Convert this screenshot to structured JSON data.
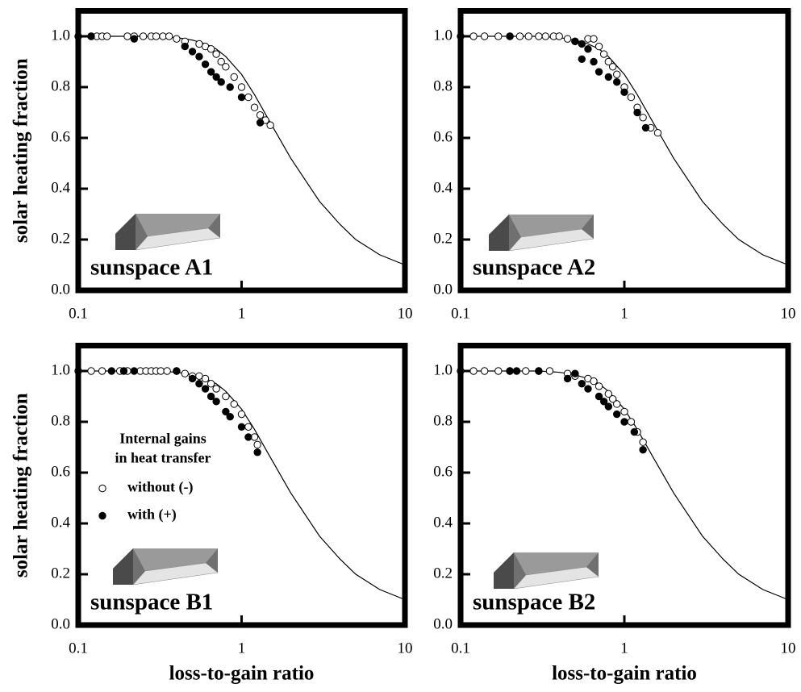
{
  "chart_data": [
    {
      "type": "scatter",
      "title": "sunspace A1",
      "ylabel": "solar heating fraction",
      "log_x": true,
      "xlim": [
        0.1,
        10
      ],
      "ylim": [
        0,
        1.1
      ],
      "xticks": [
        0.1,
        1,
        10
      ],
      "yticks": [
        {
          "value": 0,
          "label": "0.0"
        },
        0.2,
        0.4,
        0.6,
        0.8,
        {
          "value": 1,
          "label": "1.0"
        }
      ],
      "series": [
        {
          "marker": "open",
          "color": "#000000",
          "x": [
            0.12,
            0.13,
            0.14,
            0.15,
            0.2,
            0.22,
            0.25,
            0.28,
            0.3,
            0.33,
            0.36,
            0.4,
            0.45,
            0.55,
            0.6,
            0.65,
            0.7,
            0.75,
            0.8,
            0.9,
            1.0,
            1.1,
            1.2,
            1.3,
            1.4,
            1.5
          ],
          "values": [
            1.0,
            1.0,
            1.0,
            1.0,
            1.0,
            1.0,
            1.0,
            1.0,
            1.0,
            1.0,
            1.0,
            0.99,
            0.98,
            0.97,
            0.96,
            0.95,
            0.93,
            0.9,
            0.88,
            0.84,
            0.8,
            0.76,
            0.72,
            0.69,
            0.67,
            0.65
          ]
        },
        {
          "marker": "filled",
          "color": "#000000",
          "x": [
            0.1,
            0.12,
            0.22,
            0.45,
            0.5,
            0.55,
            0.6,
            0.65,
            0.7,
            0.75,
            0.85,
            1.0,
            1.3
          ],
          "values": [
            1.0,
            1.0,
            0.99,
            0.96,
            0.94,
            0.92,
            0.89,
            0.86,
            0.84,
            0.82,
            0.8,
            0.76,
            0.66
          ]
        }
      ],
      "curve": {
        "x": [
          0.1,
          0.2,
          0.3,
          0.4,
          0.5,
          0.6,
          0.7,
          0.8,
          1,
          1.2,
          1.5,
          2,
          3,
          4,
          5,
          7,
          10
        ],
        "values": [
          1.0,
          1.0,
          1.0,
          0.995,
          0.985,
          0.97,
          0.95,
          0.92,
          0.85,
          0.77,
          0.66,
          0.52,
          0.35,
          0.26,
          0.2,
          0.14,
          0.1
        ]
      }
    },
    {
      "type": "scatter",
      "title": "sunspace A2",
      "log_x": true,
      "xlim": [
        0.1,
        10
      ],
      "ylim": [
        0,
        1.1
      ],
      "xticks": [
        0.1,
        1,
        10
      ],
      "yticks": [
        {
          "value": 0,
          "label": "0.0"
        },
        0.2,
        0.4,
        0.6,
        0.8,
        {
          "value": 1,
          "label": "1.0"
        }
      ],
      "series": [
        {
          "marker": "open",
          "color": "#000000",
          "x": [
            0.12,
            0.14,
            0.17,
            0.2,
            0.23,
            0.26,
            0.3,
            0.33,
            0.37,
            0.4,
            0.45,
            0.5,
            0.6,
            0.65,
            0.7,
            0.75,
            0.8,
            0.85,
            0.9,
            1.0,
            1.1,
            1.2,
            1.3,
            1.45,
            1.6
          ],
          "values": [
            1.0,
            1.0,
            1.0,
            1.0,
            1.0,
            1.0,
            1.0,
            1.0,
            1.0,
            1.0,
            0.99,
            0.98,
            0.99,
            0.99,
            0.96,
            0.93,
            0.9,
            0.88,
            0.85,
            0.8,
            0.76,
            0.72,
            0.68,
            0.64,
            0.62
          ]
        },
        {
          "marker": "filled",
          "color": "#000000",
          "x": [
            0.1,
            0.2,
            0.5,
            0.55,
            0.6,
            0.55,
            0.65,
            0.7,
            0.8,
            0.9,
            1.0,
            1.2,
            1.35
          ],
          "values": [
            1.0,
            1.0,
            0.98,
            0.97,
            0.95,
            0.91,
            0.9,
            0.86,
            0.84,
            0.82,
            0.78,
            0.7,
            0.64
          ]
        }
      ],
      "curve": {
        "x": [
          0.1,
          0.2,
          0.3,
          0.4,
          0.5,
          0.6,
          0.7,
          0.8,
          1,
          1.2,
          1.5,
          2,
          3,
          4,
          5,
          7,
          10
        ],
        "values": [
          1.0,
          1.0,
          1.0,
          0.995,
          0.985,
          0.97,
          0.95,
          0.92,
          0.85,
          0.77,
          0.66,
          0.52,
          0.35,
          0.26,
          0.2,
          0.14,
          0.1
        ]
      }
    },
    {
      "type": "scatter",
      "title": "sunspace B1",
      "ylabel": "solar heating fraction",
      "xlabel": "loss-to-gain ratio",
      "log_x": true,
      "xlim": [
        0.1,
        10
      ],
      "ylim": [
        0,
        1.1
      ],
      "xticks": [
        0.1,
        1,
        10
      ],
      "yticks": [
        {
          "value": 0,
          "label": "0.0"
        },
        0.2,
        0.4,
        0.6,
        0.8,
        {
          "value": 1,
          "label": "1.0"
        }
      ],
      "legend": {
        "title": [
          "Internal gains",
          "in heat transfer"
        ],
        "entries": [
          {
            "label": "without (-)",
            "marker": "open"
          },
          {
            "label": "with (+)",
            "marker": "filled"
          }
        ]
      },
      "series": [
        {
          "marker": "open",
          "color": "#000000",
          "x": [
            0.1,
            0.12,
            0.14,
            0.18,
            0.2,
            0.24,
            0.26,
            0.28,
            0.3,
            0.32,
            0.35,
            0.4,
            0.45,
            0.5,
            0.55,
            0.6,
            0.65,
            0.7,
            0.8,
            0.9,
            1.0,
            1.1,
            1.2,
            1.25
          ],
          "values": [
            1.0,
            1.0,
            1.0,
            1.0,
            1.0,
            1.0,
            1.0,
            1.0,
            1.0,
            1.0,
            1.0,
            1.0,
            0.99,
            0.98,
            0.98,
            0.97,
            0.95,
            0.93,
            0.9,
            0.87,
            0.83,
            0.78,
            0.74,
            0.71
          ]
        },
        {
          "marker": "filled",
          "color": "#000000",
          "x": [
            0.16,
            0.19,
            0.22,
            0.4,
            0.5,
            0.55,
            0.6,
            0.65,
            0.7,
            0.8,
            0.85,
            1.0,
            1.1,
            1.25
          ],
          "values": [
            1.0,
            1.0,
            1.0,
            1.0,
            0.97,
            0.95,
            0.93,
            0.9,
            0.88,
            0.84,
            0.82,
            0.78,
            0.74,
            0.68
          ]
        }
      ],
      "curve": {
        "x": [
          0.1,
          0.2,
          0.3,
          0.4,
          0.5,
          0.6,
          0.7,
          0.8,
          1,
          1.2,
          1.5,
          2,
          3,
          4,
          5,
          7,
          10
        ],
        "values": [
          1.0,
          1.0,
          1.0,
          0.995,
          0.985,
          0.97,
          0.95,
          0.92,
          0.85,
          0.77,
          0.66,
          0.52,
          0.35,
          0.26,
          0.2,
          0.14,
          0.1
        ]
      }
    },
    {
      "type": "scatter",
      "title": "sunspace B2",
      "xlabel": "loss-to-gain ratio",
      "log_x": true,
      "xlim": [
        0.1,
        10
      ],
      "ylim": [
        0,
        1.1
      ],
      "xticks": [
        0.1,
        1,
        10
      ],
      "yticks": [
        {
          "value": 0,
          "label": "0.0"
        },
        0.2,
        0.4,
        0.6,
        0.8,
        {
          "value": 1,
          "label": "1.0"
        }
      ],
      "series": [
        {
          "marker": "open",
          "color": "#000000",
          "x": [
            0.1,
            0.12,
            0.14,
            0.17,
            0.2,
            0.25,
            0.3,
            0.35,
            0.45,
            0.5,
            0.6,
            0.65,
            0.7,
            0.8,
            0.85,
            0.9,
            1.0,
            1.1,
            1.2,
            1.3
          ],
          "values": [
            1.0,
            1.0,
            1.0,
            1.0,
            1.0,
            1.0,
            1.0,
            1.0,
            0.99,
            0.98,
            0.97,
            0.96,
            0.94,
            0.91,
            0.89,
            0.87,
            0.84,
            0.8,
            0.76,
            0.72
          ]
        },
        {
          "marker": "filled",
          "color": "#000000",
          "x": [
            0.2,
            0.22,
            0.3,
            0.45,
            0.55,
            0.5,
            0.6,
            0.7,
            0.75,
            0.8,
            0.9,
            1.0,
            1.15,
            1.3
          ],
          "values": [
            1.0,
            1.0,
            1.0,
            0.97,
            0.95,
            0.99,
            0.93,
            0.9,
            0.88,
            0.86,
            0.83,
            0.8,
            0.76,
            0.69
          ]
        }
      ],
      "curve": {
        "x": [
          0.1,
          0.2,
          0.3,
          0.4,
          0.5,
          0.6,
          0.7,
          0.8,
          1,
          1.2,
          1.5,
          2,
          3,
          4,
          5,
          7,
          10
        ],
        "values": [
          1.0,
          1.0,
          1.0,
          0.995,
          0.985,
          0.97,
          0.95,
          0.92,
          0.85,
          0.77,
          0.66,
          0.52,
          0.35,
          0.26,
          0.2,
          0.14,
          0.1
        ]
      }
    }
  ]
}
